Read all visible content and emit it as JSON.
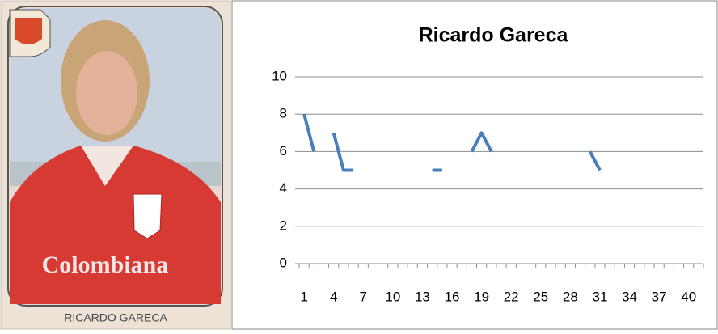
{
  "card": {
    "caption": "RICARDO GARECA"
  },
  "chart_data": {
    "type": "line",
    "title": "Ricardo Gareca",
    "categories": [
      "1",
      null,
      null,
      "4",
      null,
      null,
      "7",
      null,
      null,
      "10",
      null,
      null,
      "13",
      null,
      null,
      "16",
      null,
      null,
      "19",
      null,
      null,
      "22",
      null,
      null,
      "25",
      null,
      null,
      "28",
      null,
      null,
      "31",
      null,
      null,
      "34",
      null,
      null,
      "37",
      null,
      null,
      "40",
      null
    ],
    "series": [
      {
        "color": "#4a7ebb",
        "values": [
          8,
          6,
          null,
          7,
          5,
          5,
          null,
          null,
          null,
          null,
          null,
          null,
          null,
          5,
          5,
          null,
          null,
          6,
          7,
          6,
          null,
          null,
          null,
          null,
          null,
          null,
          null,
          null,
          null,
          6,
          5,
          null,
          null,
          null,
          null,
          null,
          null,
          null,
          null,
          null,
          null
        ]
      }
    ],
    "ylim": [
      0,
      10
    ],
    "yticks": [
      0,
      2,
      4,
      6,
      8,
      10
    ],
    "grid": true
  }
}
